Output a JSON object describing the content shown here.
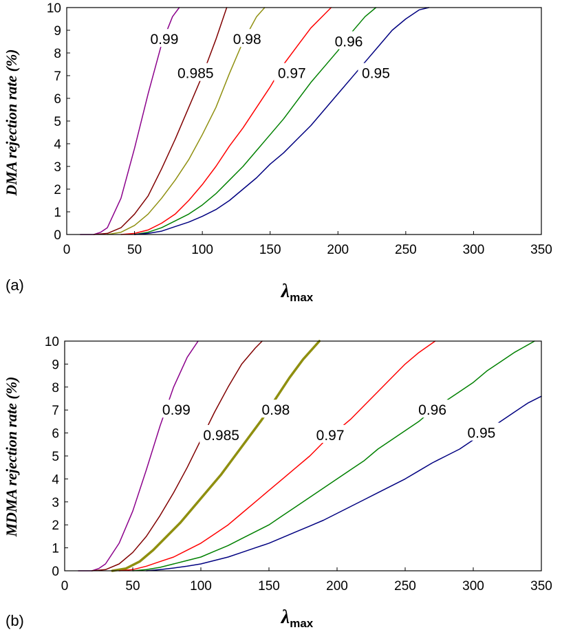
{
  "chart_data": [
    {
      "type": "line",
      "panel_label": "(a)",
      "ylabel": "DMA rejection rate (%)",
      "xlabel_main": "λ",
      "xlabel_sub": "max",
      "xlim": [
        0,
        350
      ],
      "ylim": [
        0,
        10
      ],
      "x_ticks": [
        "0",
        "50",
        "100",
        "150",
        "200",
        "250",
        "300",
        "350"
      ],
      "y_ticks": [
        "0",
        "1",
        "2",
        "3",
        "4",
        "5",
        "6",
        "7",
        "8",
        "9",
        "10"
      ],
      "grid": false,
      "series": [
        {
          "name": "0.99",
          "color": "#8B008B",
          "width": 1.5,
          "label_at": [
            72,
            8.6
          ],
          "points": [
            [
              10,
              0
            ],
            [
              20,
              0
            ],
            [
              25,
              0.1
            ],
            [
              30,
              0.3
            ],
            [
              40,
              1.6
            ],
            [
              50,
              3.8
            ],
            [
              60,
              6.2
            ],
            [
              70,
              8.4
            ],
            [
              78,
              9.6
            ],
            [
              83,
              10
            ]
          ]
        },
        {
          "name": "0.985",
          "color": "#800000",
          "width": 1.5,
          "label_at": [
            95,
            7.1
          ],
          "points": [
            [
              20,
              0
            ],
            [
              30,
              0.05
            ],
            [
              40,
              0.3
            ],
            [
              50,
              0.9
            ],
            [
              60,
              1.7
            ],
            [
              70,
              2.9
            ],
            [
              80,
              4.2
            ],
            [
              90,
              5.6
            ],
            [
              100,
              7.0
            ],
            [
              110,
              8.6
            ],
            [
              118,
              10
            ]
          ]
        },
        {
          "name": "0.98",
          "color": "#8F8F0F",
          "width": 1.5,
          "label_at": [
            133,
            8.6
          ],
          "points": [
            [
              30,
              0
            ],
            [
              40,
              0.1
            ],
            [
              50,
              0.4
            ],
            [
              60,
              0.9
            ],
            [
              70,
              1.6
            ],
            [
              80,
              2.4
            ],
            [
              90,
              3.3
            ],
            [
              100,
              4.4
            ],
            [
              110,
              5.6
            ],
            [
              120,
              7.1
            ],
            [
              130,
              8.5
            ],
            [
              140,
              9.6
            ],
            [
              146,
              10
            ]
          ]
        },
        {
          "name": "0.97",
          "color": "#FF0000",
          "width": 1.5,
          "label_at": [
            166,
            7.1
          ],
          "points": [
            [
              40,
              0
            ],
            [
              50,
              0.05
            ],
            [
              60,
              0.2
            ],
            [
              70,
              0.5
            ],
            [
              80,
              0.9
            ],
            [
              90,
              1.5
            ],
            [
              100,
              2.2
            ],
            [
              110,
              3.0
            ],
            [
              120,
              3.9
            ],
            [
              130,
              4.7
            ],
            [
              140,
              5.6
            ],
            [
              150,
              6.5
            ],
            [
              160,
              7.5
            ],
            [
              170,
              8.3
            ],
            [
              180,
              9.1
            ],
            [
              190,
              9.7
            ],
            [
              195,
              10
            ]
          ]
        },
        {
          "name": "0.96",
          "color": "#008000",
          "width": 1.5,
          "label_at": [
            208,
            8.5
          ],
          "points": [
            [
              50,
              0
            ],
            [
              60,
              0.1
            ],
            [
              70,
              0.3
            ],
            [
              80,
              0.6
            ],
            [
              90,
              0.9
            ],
            [
              100,
              1.3
            ],
            [
              110,
              1.8
            ],
            [
              120,
              2.4
            ],
            [
              130,
              3.0
            ],
            [
              140,
              3.7
            ],
            [
              150,
              4.4
            ],
            [
              160,
              5.1
            ],
            [
              170,
              5.9
            ],
            [
              180,
              6.7
            ],
            [
              190,
              7.4
            ],
            [
              200,
              8.1
            ],
            [
              210,
              8.9
            ],
            [
              220,
              9.6
            ],
            [
              228,
              10
            ]
          ]
        },
        {
          "name": "0.95",
          "color": "#000080",
          "width": 1.5,
          "label_at": [
            228,
            7.1
          ],
          "points": [
            [
              50,
              0
            ],
            [
              60,
              0.05
            ],
            [
              70,
              0.15
            ],
            [
              80,
              0.35
            ],
            [
              90,
              0.55
            ],
            [
              100,
              0.8
            ],
            [
              110,
              1.1
            ],
            [
              120,
              1.5
            ],
            [
              130,
              2.0
            ],
            [
              140,
              2.5
            ],
            [
              150,
              3.1
            ],
            [
              160,
              3.6
            ],
            [
              170,
              4.2
            ],
            [
              180,
              4.8
            ],
            [
              190,
              5.5
            ],
            [
              200,
              6.2
            ],
            [
              210,
              6.9
            ],
            [
              220,
              7.6
            ],
            [
              230,
              8.3
            ],
            [
              240,
              9.0
            ],
            [
              250,
              9.5
            ],
            [
              260,
              9.9
            ],
            [
              267,
              10
            ]
          ]
        }
      ]
    },
    {
      "type": "line",
      "panel_label": "(b)",
      "ylabel": "MDMA rejection rate (%)",
      "xlabel_main": "λ",
      "xlabel_sub": "max",
      "xlim": [
        0,
        350
      ],
      "ylim": [
        0,
        10
      ],
      "x_ticks": [
        "0",
        "50",
        "100",
        "150",
        "200",
        "250",
        "300",
        "350"
      ],
      "y_ticks": [
        "0",
        "1",
        "2",
        "3",
        "4",
        "5",
        "6",
        "7",
        "8",
        "9",
        "10"
      ],
      "grid": false,
      "series": [
        {
          "name": "0.99",
          "color": "#8B008B",
          "width": 1.5,
          "label_at": [
            82,
            7.0
          ],
          "points": [
            [
              10,
              0
            ],
            [
              20,
              0
            ],
            [
              25,
              0.1
            ],
            [
              30,
              0.3
            ],
            [
              40,
              1.2
            ],
            [
              50,
              2.6
            ],
            [
              60,
              4.4
            ],
            [
              70,
              6.3
            ],
            [
              80,
              8.0
            ],
            [
              90,
              9.3
            ],
            [
              98,
              10
            ]
          ]
        },
        {
          "name": "0.985",
          "color": "#800000",
          "width": 1.5,
          "label_at": [
            115,
            5.9
          ],
          "points": [
            [
              20,
              0
            ],
            [
              30,
              0.05
            ],
            [
              40,
              0.3
            ],
            [
              50,
              0.8
            ],
            [
              60,
              1.5
            ],
            [
              70,
              2.4
            ],
            [
              80,
              3.4
            ],
            [
              90,
              4.5
            ],
            [
              100,
              5.7
            ],
            [
              110,
              6.9
            ],
            [
              120,
              8.0
            ],
            [
              130,
              9.0
            ],
            [
              140,
              9.7
            ],
            [
              145,
              10
            ]
          ]
        },
        {
          "name": "0.98",
          "color": "#8F8F0F",
          "width": 3.5,
          "label_at": [
            155,
            7.0
          ],
          "points": [
            [
              35,
              0
            ],
            [
              45,
              0.1
            ],
            [
              55,
              0.4
            ],
            [
              65,
              0.9
            ],
            [
              75,
              1.5
            ],
            [
              85,
              2.1
            ],
            [
              95,
              2.8
            ],
            [
              105,
              3.5
            ],
            [
              115,
              4.2
            ],
            [
              125,
              5.0
            ],
            [
              135,
              5.8
            ],
            [
              145,
              6.6
            ],
            [
              155,
              7.5
            ],
            [
              165,
              8.4
            ],
            [
              175,
              9.2
            ],
            [
              187,
              10
            ]
          ]
        },
        {
          "name": "0.97",
          "color": "#FF0000",
          "width": 1.5,
          "label_at": [
            195,
            5.9
          ],
          "points": [
            [
              40,
              0
            ],
            [
              50,
              0.05
            ],
            [
              60,
              0.2
            ],
            [
              70,
              0.4
            ],
            [
              80,
              0.6
            ],
            [
              90,
              0.9
            ],
            [
              100,
              1.2
            ],
            [
              110,
              1.6
            ],
            [
              120,
              2.0
            ],
            [
              130,
              2.5
            ],
            [
              140,
              3.0
            ],
            [
              150,
              3.5
            ],
            [
              160,
              4.0
            ],
            [
              170,
              4.5
            ],
            [
              180,
              5.0
            ],
            [
              190,
              5.6
            ],
            [
              200,
              6.1
            ],
            [
              210,
              6.6
            ],
            [
              220,
              7.2
            ],
            [
              230,
              7.8
            ],
            [
              240,
              8.4
            ],
            [
              250,
              9.0
            ],
            [
              260,
              9.5
            ],
            [
              272,
              10
            ]
          ]
        },
        {
          "name": "0.96",
          "color": "#008000",
          "width": 1.5,
          "label_at": [
            270,
            7.0
          ],
          "points": [
            [
              50,
              0
            ],
            [
              60,
              0.05
            ],
            [
              70,
              0.15
            ],
            [
              80,
              0.3
            ],
            [
              90,
              0.45
            ],
            [
              100,
              0.6
            ],
            [
              110,
              0.85
            ],
            [
              120,
              1.1
            ],
            [
              130,
              1.4
            ],
            [
              140,
              1.7
            ],
            [
              150,
              2.0
            ],
            [
              160,
              2.4
            ],
            [
              170,
              2.8
            ],
            [
              180,
              3.2
            ],
            [
              190,
              3.6
            ],
            [
              200,
              4.0
            ],
            [
              210,
              4.4
            ],
            [
              220,
              4.8
            ],
            [
              230,
              5.3
            ],
            [
              240,
              5.7
            ],
            [
              250,
              6.1
            ],
            [
              260,
              6.5
            ],
            [
              270,
              7.0
            ],
            [
              280,
              7.4
            ],
            [
              290,
              7.8
            ],
            [
              300,
              8.2
            ],
            [
              310,
              8.7
            ],
            [
              320,
              9.1
            ],
            [
              330,
              9.5
            ],
            [
              345,
              10
            ]
          ]
        },
        {
          "name": "0.95",
          "color": "#000080",
          "width": 1.5,
          "label_at": [
            306,
            6.0
          ],
          "points": [
            [
              60,
              0
            ],
            [
              70,
              0.05
            ],
            [
              80,
              0.12
            ],
            [
              90,
              0.2
            ],
            [
              100,
              0.3
            ],
            [
              110,
              0.45
            ],
            [
              120,
              0.6
            ],
            [
              130,
              0.8
            ],
            [
              140,
              1.0
            ],
            [
              150,
              1.2
            ],
            [
              160,
              1.45
            ],
            [
              170,
              1.7
            ],
            [
              180,
              1.95
            ],
            [
              190,
              2.2
            ],
            [
              200,
              2.5
            ],
            [
              210,
              2.8
            ],
            [
              220,
              3.1
            ],
            [
              230,
              3.4
            ],
            [
              240,
              3.7
            ],
            [
              250,
              4.0
            ],
            [
              260,
              4.35
            ],
            [
              270,
              4.7
            ],
            [
              280,
              5.0
            ],
            [
              290,
              5.3
            ],
            [
              300,
              5.7
            ],
            [
              310,
              6.1
            ],
            [
              320,
              6.5
            ],
            [
              330,
              6.9
            ],
            [
              340,
              7.3
            ],
            [
              350,
              7.6
            ]
          ]
        }
      ]
    }
  ]
}
